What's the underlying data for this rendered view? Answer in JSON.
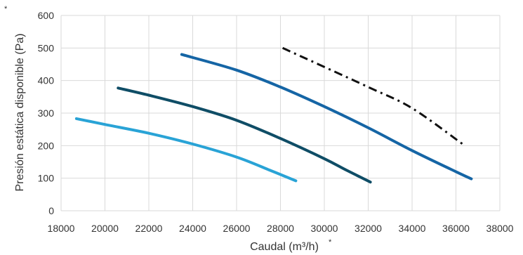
{
  "chart_data": {
    "type": "line",
    "xlabel": "Caudal (m³/h)",
    "ylabel": "Presión estática disponible  (Pa)",
    "xlim": [
      18000,
      38000
    ],
    "ylim": [
      0,
      600
    ],
    "x_ticks": [
      18000,
      20000,
      22000,
      24000,
      26000,
      28000,
      30000,
      32000,
      34000,
      36000,
      38000
    ],
    "y_ticks": [
      0,
      100,
      200,
      300,
      400,
      500,
      600
    ],
    "grid": true,
    "legend": "none",
    "corner_marks": [
      "*",
      "*"
    ],
    "series": [
      {
        "color": "#29a3d6",
        "style": "solid",
        "points": [
          [
            18700,
            283
          ],
          [
            20000,
            265
          ],
          [
            22000,
            238
          ],
          [
            24000,
            205
          ],
          [
            26000,
            165
          ],
          [
            27500,
            125
          ],
          [
            28700,
            92
          ]
        ]
      },
      {
        "color": "#0f4d66",
        "style": "solid",
        "points": [
          [
            20600,
            377
          ],
          [
            22000,
            355
          ],
          [
            24000,
            320
          ],
          [
            26000,
            278
          ],
          [
            28000,
            222
          ],
          [
            30000,
            160
          ],
          [
            31000,
            125
          ],
          [
            32100,
            88
          ]
        ]
      },
      {
        "color": "#1565a5",
        "style": "solid",
        "points": [
          [
            23500,
            480
          ],
          [
            26000,
            432
          ],
          [
            28000,
            380
          ],
          [
            30000,
            320
          ],
          [
            32000,
            255
          ],
          [
            34000,
            185
          ],
          [
            36000,
            120
          ],
          [
            36700,
            98
          ]
        ]
      },
      {
        "color": "#111111",
        "style": "dashdot",
        "points": [
          [
            28100,
            500
          ],
          [
            32000,
            380
          ],
          [
            34000,
            315
          ],
          [
            36300,
            205
          ]
        ]
      }
    ]
  }
}
